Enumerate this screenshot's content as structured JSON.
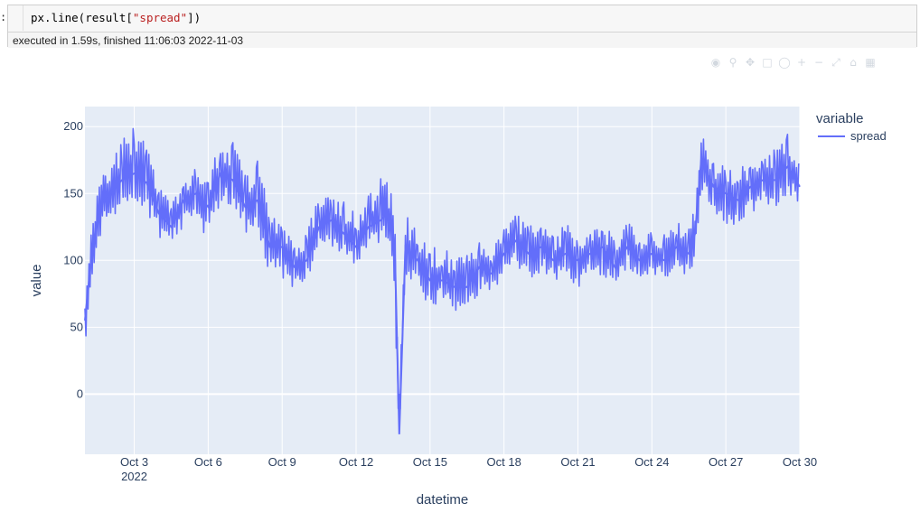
{
  "cell": {
    "prompt": ":",
    "code_prefix": "px.line(result[",
    "code_string": "\"spread\"",
    "code_suffix": "])",
    "status": "executed in 1.59s, finished 11:06:03 2022-11-03"
  },
  "modebar_icons": [
    "camera-icon",
    "zoom-icon",
    "pan-icon",
    "box-select-icon",
    "lasso-icon",
    "zoom-in-icon",
    "zoom-out-icon",
    "autoscale-icon",
    "reset-axes-icon",
    "plotly-logo-icon"
  ],
  "colors": {
    "plot_bg": "#E5ECF6",
    "line": "#636EFA",
    "grid": "#ffffff",
    "text": "#2a3f5f"
  },
  "chart_data": {
    "type": "line",
    "xlabel": "datetime",
    "ylabel": "value",
    "legend_title": "variable",
    "legend_position": "top-right",
    "grid": true,
    "x_range": [
      "2022-10-01 00:00",
      "2022-10-30 00:00"
    ],
    "ylim": [
      -45,
      215
    ],
    "x_tick_labels": [
      "Oct 3",
      "Oct 6",
      "Oct 9",
      "Oct 12",
      "Oct 15",
      "Oct 18",
      "Oct 21",
      "Oct 24",
      "Oct 27",
      "Oct 30"
    ],
    "x_tick_year": "2022",
    "y_ticks": [
      0,
      50,
      100,
      150,
      200
    ],
    "y_tick_labels": [
      "0",
      "50",
      "100",
      "150",
      "200"
    ],
    "series": [
      {
        "name": "spread",
        "x": [
          "2022-10-01 00:00",
          "2022-10-01 06:00",
          "2022-10-01 12:00",
          "2022-10-01 18:00",
          "2022-10-02 00:00",
          "2022-10-02 12:00",
          "2022-10-03 00:00",
          "2022-10-03 12:00",
          "2022-10-04 00:00",
          "2022-10-04 12:00",
          "2022-10-05 00:00",
          "2022-10-05 12:00",
          "2022-10-06 00:00",
          "2022-10-06 12:00",
          "2022-10-07 00:00",
          "2022-10-07 12:00",
          "2022-10-08 00:00",
          "2022-10-08 12:00",
          "2022-10-09 00:00",
          "2022-10-09 12:00",
          "2022-10-10 00:00",
          "2022-10-10 12:00",
          "2022-10-11 00:00",
          "2022-10-11 12:00",
          "2022-10-12 00:00",
          "2022-10-12 12:00",
          "2022-10-13 00:00",
          "2022-10-13 06:00",
          "2022-10-13 12:00",
          "2022-10-13 14:00",
          "2022-10-13 18:00",
          "2022-10-14 00:00",
          "2022-10-14 12:00",
          "2022-10-15 00:00",
          "2022-10-15 12:00",
          "2022-10-16 00:00",
          "2022-10-16 12:00",
          "2022-10-17 00:00",
          "2022-10-17 12:00",
          "2022-10-18 00:00",
          "2022-10-18 12:00",
          "2022-10-19 00:00",
          "2022-10-19 12:00",
          "2022-10-20 00:00",
          "2022-10-20 12:00",
          "2022-10-21 00:00",
          "2022-10-21 12:00",
          "2022-10-22 00:00",
          "2022-10-22 12:00",
          "2022-10-23 00:00",
          "2022-10-23 12:00",
          "2022-10-24 00:00",
          "2022-10-24 12:00",
          "2022-10-25 00:00",
          "2022-10-25 12:00",
          "2022-10-25 18:00",
          "2022-10-26 00:00",
          "2022-10-26 12:00",
          "2022-10-27 00:00",
          "2022-10-27 12:00",
          "2022-10-28 00:00",
          "2022-10-28 12:00",
          "2022-10-29 00:00",
          "2022-10-29 12:00",
          "2022-10-30 00:00"
        ],
        "y": [
          55,
          100,
          130,
          145,
          150,
          160,
          165,
          158,
          135,
          125,
          145,
          150,
          140,
          165,
          160,
          140,
          145,
          110,
          110,
          95,
          100,
          125,
          130,
          120,
          110,
          125,
          130,
          135,
          120,
          100,
          -30,
          110,
          100,
          85,
          85,
          80,
          80,
          95,
          90,
          105,
          115,
          105,
          110,
          100,
          105,
          100,
          105,
          110,
          95,
          110,
          100,
          105,
          100,
          110,
          105,
          120,
          175,
          155,
          150,
          145,
          155,
          160,
          160,
          170,
          155
        ],
        "y_min": [
          35,
          80,
          110,
          125,
          130,
          140,
          145,
          138,
          115,
          110,
          125,
          130,
          115,
          140,
          140,
          120,
          110,
          90,
          80,
          80,
          85,
          105,
          110,
          105,
          95,
          110,
          110,
          115,
          100,
          55,
          -33,
          90,
          80,
          65,
          70,
          60,
          65,
          75,
          75,
          90,
          95,
          85,
          90,
          85,
          85,
          80,
          85,
          90,
          80,
          95,
          85,
          90,
          85,
          90,
          90,
          100,
          150,
          135,
          125,
          125,
          135,
          140,
          140,
          150,
          140
        ],
        "y_max": [
          85,
          120,
          150,
          165,
          170,
          190,
          200,
          185,
          155,
          145,
          160,
          170,
          165,
          190,
          190,
          165,
          175,
          140,
          125,
          115,
          125,
          150,
          150,
          145,
          135,
          150,
          165,
          160,
          145,
          120,
          0,
          135,
          125,
          110,
          110,
          105,
          105,
          115,
          110,
          125,
          135,
          125,
          130,
          120,
          130,
          120,
          125,
          130,
          115,
          130,
          120,
          125,
          120,
          130,
          125,
          140,
          200,
          175,
          170,
          165,
          180,
          180,
          185,
          195,
          185
        ]
      }
    ]
  }
}
